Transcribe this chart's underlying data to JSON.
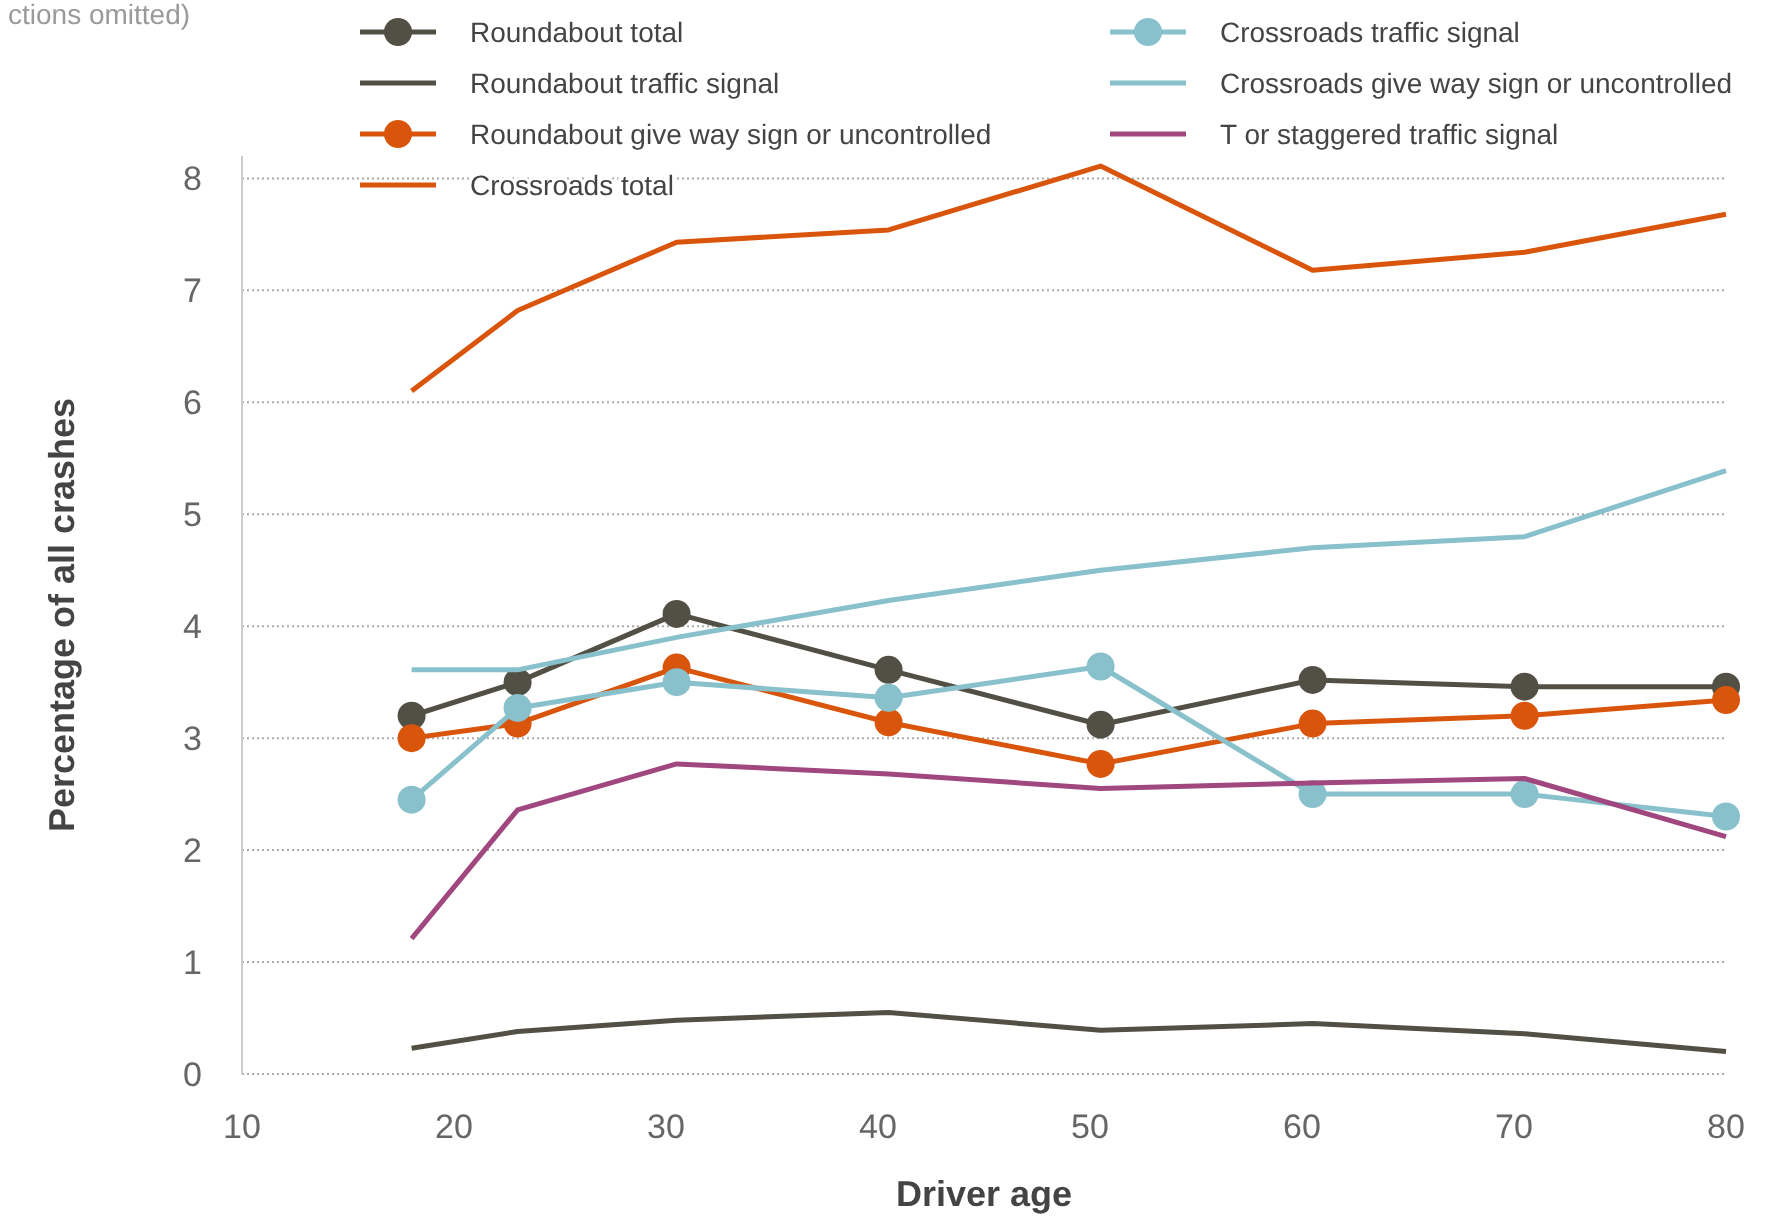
{
  "chart_data": {
    "type": "line",
    "xlabel": "Driver age",
    "ylabel": "Percentage of all crashes",
    "annotations": [
      "ctions omitted)"
    ],
    "x": [
      18,
      23,
      30.5,
      40.5,
      50.5,
      60.5,
      70.5,
      80
    ],
    "xlim": [
      10,
      80
    ],
    "xticks": [
      10,
      20,
      30,
      40,
      50,
      60,
      70,
      80
    ],
    "ylim": [
      0,
      8.2
    ],
    "yticks": [
      0,
      1,
      2,
      3,
      4,
      5,
      6,
      7,
      8
    ],
    "grid": "y",
    "legend": "top",
    "series": [
      {
        "name": "Roundabout total",
        "color": "#524f45",
        "marker": "circle",
        "values": [
          3.2,
          3.5,
          4.11,
          3.61,
          3.12,
          3.52,
          3.46,
          3.46
        ]
      },
      {
        "name": "Roundabout traffic signal",
        "color": "#524f45",
        "marker": "none",
        "values": [
          0.23,
          0.38,
          0.48,
          0.55,
          0.39,
          0.45,
          0.36,
          0.2
        ]
      },
      {
        "name": "Roundabout give way sign or uncontrolled",
        "color": "#d9550b",
        "marker": "circle",
        "values": [
          3.0,
          3.13,
          3.63,
          3.14,
          2.77,
          3.13,
          3.2,
          3.34
        ]
      },
      {
        "name": "Crossroads total",
        "color": "#d9550b",
        "marker": "none",
        "values": [
          6.1,
          6.82,
          7.43,
          7.54,
          8.11,
          7.18,
          7.34,
          7.68
        ]
      },
      {
        "name": "Crossroads traffic signal",
        "color": "#88c0cc",
        "marker": "circle",
        "values": [
          2.45,
          3.27,
          3.5,
          3.36,
          3.64,
          2.5,
          2.5,
          2.3
        ]
      },
      {
        "name": "Crossroads give way sign or uncontrolled",
        "color": "#88c0cc",
        "marker": "none",
        "values": [
          3.61,
          3.61,
          3.9,
          4.23,
          4.5,
          4.7,
          4.8,
          5.39
        ]
      },
      {
        "name": "T or staggered traffic signal",
        "color": "#a0477f",
        "marker": "none",
        "values": [
          1.21,
          2.36,
          2.77,
          2.68,
          2.55,
          2.6,
          2.64,
          2.12
        ]
      }
    ]
  }
}
